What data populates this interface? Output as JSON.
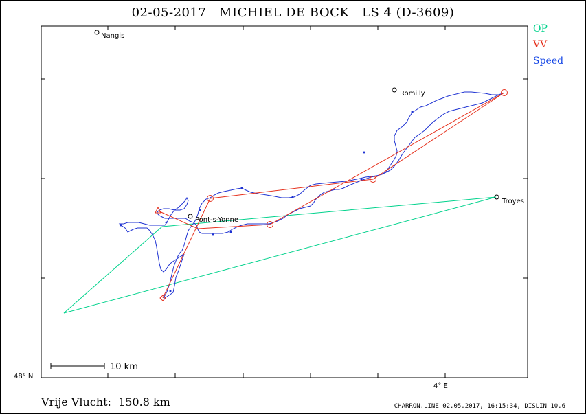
{
  "title": "02-05-2017   MICHIEL DE BOCK   LS 4 (D-3609)",
  "legend": [
    {
      "label": "OP",
      "color": "#00d28c"
    },
    {
      "label": "VV",
      "color": "#e6321e"
    },
    {
      "label": "Speed",
      "color": "#1446e6"
    }
  ],
  "places": [
    {
      "name": "Nangis"
    },
    {
      "name": "Romilly"
    },
    {
      "name": "Troyes"
    },
    {
      "name": "Pont-s-Yonne"
    }
  ],
  "scale_label": "10 km",
  "lat_label": "48° N",
  "lon_label": "4° E",
  "distance_text": "Vrije Vlucht:  150.8 km",
  "footer": "CHARRON.LINE 02.05.2017, 16:15:34, DISLIN 10.6"
}
